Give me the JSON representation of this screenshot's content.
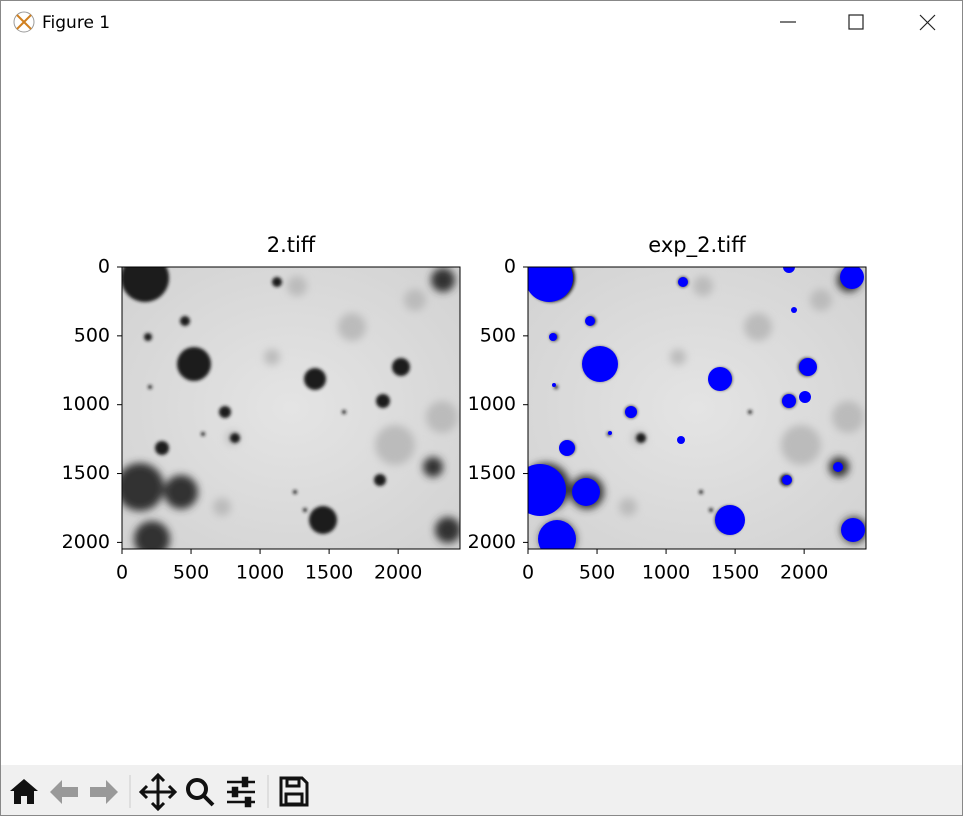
{
  "window": {
    "title": "Figure 1"
  },
  "chart_data": [
    {
      "type": "image",
      "title": "2.tiff",
      "xlim": [
        0,
        2448
      ],
      "ylim": [
        2048,
        0
      ],
      "xticks": [
        0,
        500,
        1000,
        1500,
        2000
      ],
      "yticks": [
        0,
        500,
        1000,
        1500,
        2000
      ]
    },
    {
      "type": "image",
      "title": "exp_2.tiff",
      "xlim": [
        0,
        2448
      ],
      "ylim": [
        2048,
        0
      ],
      "xticks": [
        0,
        500,
        1000,
        1500,
        2000
      ],
      "yticks": [
        0,
        500,
        1000,
        1500,
        2000
      ]
    }
  ]
}
